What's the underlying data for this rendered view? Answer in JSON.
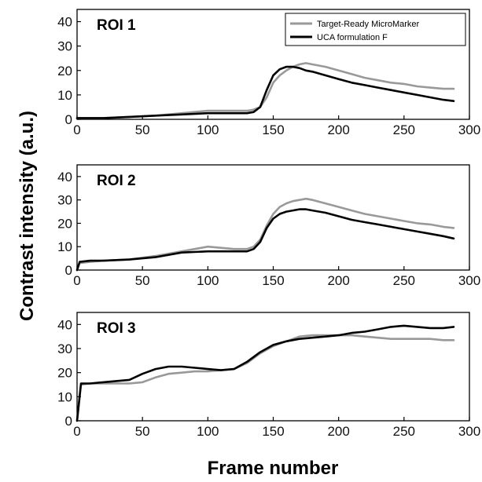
{
  "chart_data": {
    "type": "line",
    "xlabel": "Frame number",
    "ylabel": "Contrast intensity (a.u.)",
    "colors": {
      "Target-Ready MicroMarker": "#999999",
      "UCA formulation F": "#000000"
    },
    "legend": {
      "placement": "top-right",
      "panel": "ROI 1",
      "entries": [
        "Target-Ready MicroMarker",
        "UCA formulation F"
      ]
    },
    "xlim": [
      0,
      300
    ],
    "xticks": [
      "0",
      "50",
      "100",
      "150",
      "200",
      "250",
      "300"
    ],
    "grid": false,
    "panels": [
      {
        "title": "ROI 1",
        "ylim": [
          0,
          45
        ],
        "yticks": [
          "0",
          "10",
          "20",
          "30",
          "40"
        ],
        "x": [
          0,
          20,
          40,
          60,
          80,
          100,
          120,
          130,
          135,
          140,
          145,
          150,
          155,
          160,
          165,
          170,
          175,
          180,
          190,
          200,
          210,
          220,
          230,
          240,
          250,
          260,
          270,
          280,
          288
        ],
        "series": [
          {
            "name": "Target-Ready MicroMarker",
            "color": "#999999",
            "values": [
              0.5,
              0.5,
              1,
              1.5,
              2.5,
              3.5,
              3.5,
              3.5,
              4,
              5,
              9,
              15,
              18,
              20,
              21.5,
              22.5,
              23,
              22.5,
              21.5,
              20,
              18.5,
              17,
              16,
              15,
              14.5,
              13.5,
              13,
              12.5,
              12.5
            ]
          },
          {
            "name": "UCA formulation F",
            "color": "#000000",
            "values": [
              0.5,
              0.5,
              1,
              1.5,
              2,
              2.5,
              2.5,
              2.5,
              3,
              5,
              12,
              18,
              20.5,
              21.5,
              21.5,
              21,
              20,
              19.5,
              18,
              16.5,
              15,
              14,
              13,
              12,
              11,
              10,
              9,
              8,
              7.5
            ]
          }
        ]
      },
      {
        "title": "ROI 2",
        "ylim": [
          0,
          45
        ],
        "yticks": [
          "0",
          "10",
          "20",
          "30",
          "40"
        ],
        "x": [
          0,
          2,
          10,
          20,
          40,
          60,
          80,
          100,
          120,
          130,
          135,
          140,
          145,
          150,
          155,
          160,
          165,
          170,
          175,
          180,
          190,
          200,
          210,
          220,
          230,
          240,
          250,
          260,
          270,
          280,
          288
        ],
        "series": [
          {
            "name": "Target-Ready MicroMarker",
            "color": "#999999",
            "values": [
              0,
              3,
              3.5,
              4,
              4.5,
              6,
              8,
              10,
              9,
              9,
              10,
              13,
              19,
              24,
              27,
              28.5,
              29.5,
              30,
              30.5,
              30,
              28.5,
              27,
              25.5,
              24,
              23,
              22,
              21,
              20,
              19.5,
              18.5,
              18
            ]
          },
          {
            "name": "UCA formulation F",
            "color": "#000000",
            "values": [
              0,
              3.5,
              4,
              4,
              4.5,
              5.5,
              7.5,
              8,
              8,
              8,
              9,
              12,
              18,
              22,
              24,
              25,
              25.5,
              26,
              26,
              25.5,
              24.5,
              23,
              21.5,
              20.5,
              19.5,
              18.5,
              17.5,
              16.5,
              15.5,
              14.5,
              13.5
            ]
          }
        ]
      },
      {
        "title": "ROI 3",
        "ylim": [
          0,
          45
        ],
        "yticks": [
          "0",
          "10",
          "20",
          "30",
          "40"
        ],
        "x": [
          0,
          3,
          10,
          20,
          30,
          40,
          50,
          60,
          70,
          80,
          90,
          100,
          110,
          120,
          130,
          140,
          150,
          160,
          170,
          180,
          190,
          200,
          210,
          220,
          230,
          240,
          250,
          260,
          270,
          280,
          288
        ],
        "series": [
          {
            "name": "Target-Ready MicroMarker",
            "color": "#999999",
            "values": [
              0,
              15,
              15.5,
              15.5,
              15.5,
              15.5,
              16,
              18,
              19.5,
              20,
              20.5,
              20.5,
              21,
              21.5,
              24,
              28,
              31,
              33,
              35,
              35.5,
              35.5,
              35.5,
              35.5,
              35,
              34.5,
              34,
              34,
              34,
              34,
              33.5,
              33.5
            ]
          },
          {
            "name": "UCA formulation F",
            "color": "#000000",
            "values": [
              0,
              15.5,
              15.5,
              16,
              16.5,
              17,
              19.5,
              21.5,
              22.5,
              22.5,
              22,
              21.5,
              21,
              21.5,
              24.5,
              28.5,
              31.5,
              33,
              34,
              34.5,
              35,
              35.5,
              36.5,
              37,
              38,
              39,
              39.5,
              39,
              38.5,
              38.5,
              39
            ]
          }
        ]
      }
    ]
  }
}
